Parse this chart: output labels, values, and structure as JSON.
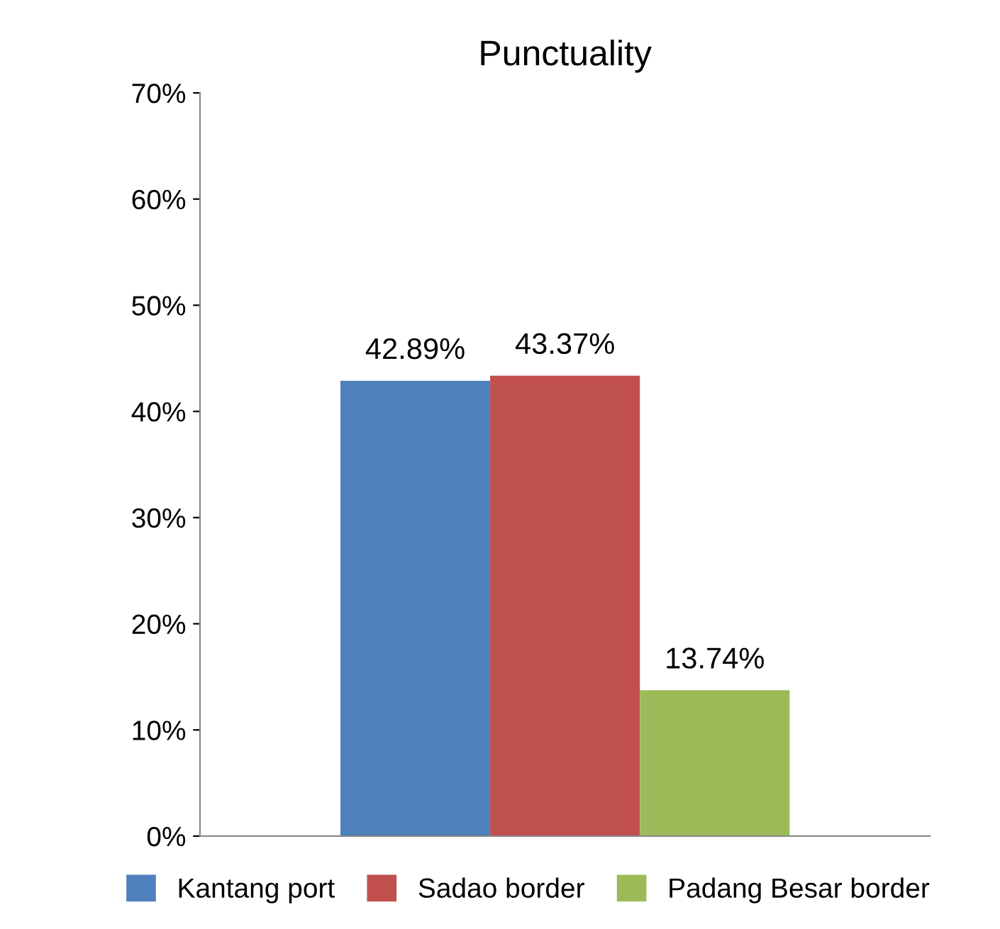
{
  "chart_data": {
    "type": "bar",
    "title": "Punctuality",
    "categories": [
      null
    ],
    "series": [
      {
        "name": "Kantang port",
        "color": "#4f81bd",
        "values": [
          42.89
        ],
        "value_labels": [
          "42.89%"
        ]
      },
      {
        "name": "Sadao border",
        "color": "#c0504d",
        "values": [
          43.37
        ],
        "value_labels": [
          "43.37%"
        ]
      },
      {
        "name": "Padang Besar border",
        "color": "#9bbb59",
        "values": [
          13.74
        ],
        "value_labels": [
          "13.74%"
        ]
      }
    ],
    "ylim": [
      0,
      70
    ],
    "yticks": [
      {
        "value": 0,
        "label": "0%"
      },
      {
        "value": 10,
        "label": "10%"
      },
      {
        "value": 20,
        "label": "20%"
      },
      {
        "value": 30,
        "label": "30%"
      },
      {
        "value": 40,
        "label": "40%"
      },
      {
        "value": 50,
        "label": "50%"
      },
      {
        "value": 60,
        "label": "60%"
      },
      {
        "value": 70,
        "label": "70%"
      }
    ],
    "grid": false,
    "legend": "bottom"
  }
}
